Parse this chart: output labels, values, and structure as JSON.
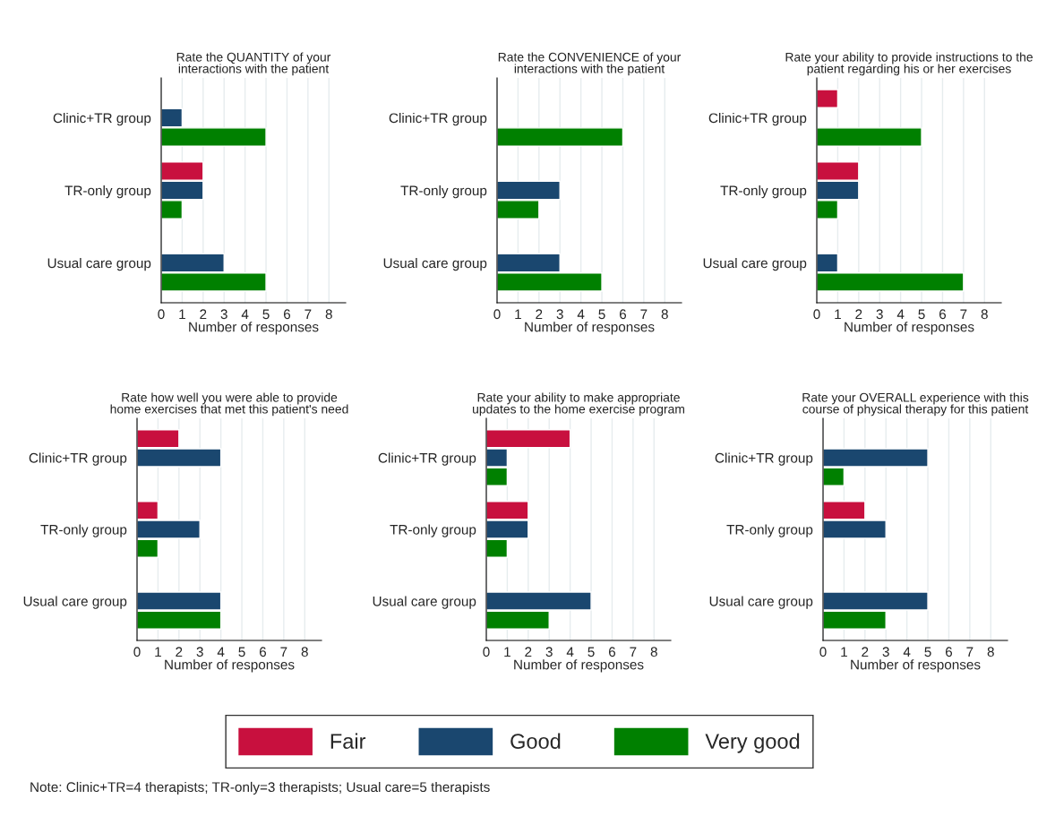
{
  "chart_data": [
    {
      "type": "bar",
      "orientation": "horizontal",
      "title": "Rate the QUANTITY of your\ninteractions with the patient",
      "xlabel": "Number of responses",
      "categories": [
        "Clinic+TR group",
        "TR-only group",
        "Usual care group"
      ],
      "xlim": [
        0,
        8.8
      ],
      "xticks": [
        0,
        1,
        2,
        3,
        4,
        5,
        6,
        7,
        8
      ],
      "grid": "x",
      "legend": "bottom",
      "annotations": [
        "Note: Clinic+TR=4 therapists; TR-only=3 therapists; Usual care=5 therapists"
      ],
      "series": [
        {
          "name": "Fair",
          "color": "#c8103e",
          "values": [
            0,
            2,
            0
          ]
        },
        {
          "name": "Good",
          "color": "#1a476f",
          "values": [
            1,
            2,
            3
          ]
        },
        {
          "name": "Very good",
          "color": "#008000",
          "values": [
            5,
            1,
            5
          ]
        }
      ]
    },
    {
      "type": "bar",
      "orientation": "horizontal",
      "title": "Rate the CONVENIENCE of your\ninteractions with the patient",
      "xlabel": "Number of responses",
      "categories": [
        "Clinic+TR group",
        "TR-only group",
        "Usual care group"
      ],
      "xlim": [
        0,
        8.8
      ],
      "xticks": [
        0,
        1,
        2,
        3,
        4,
        5,
        6,
        7,
        8
      ],
      "grid": "x",
      "series": [
        {
          "values": [
            0,
            0,
            0
          ]
        },
        {
          "color": "#1a476f",
          "values": [
            0,
            3,
            3
          ]
        },
        {
          "color": "#008000",
          "values": [
            6,
            2,
            5
          ]
        }
      ]
    },
    {
      "type": "bar",
      "orientation": "horizontal",
      "title": "Rate your ability to provide instructions to the\npatient regarding his or her exercises",
      "xlabel": "Number of responses",
      "categories": [
        "Clinic+TR group",
        "TR-only group",
        "Usual care group"
      ],
      "xlim": [
        0,
        8.8
      ],
      "xticks": [
        0,
        1,
        2,
        3,
        4,
        5,
        6,
        7,
        8
      ],
      "grid": "x",
      "series": [
        {
          "color": "#c8103e",
          "values": [
            1,
            2,
            0
          ]
        },
        {
          "color": "#1a476f",
          "values": [
            0,
            2,
            1
          ]
        },
        {
          "color": "#008000",
          "values": [
            5,
            1,
            7
          ]
        }
      ]
    },
    {
      "type": "bar",
      "orientation": "horizontal",
      "title": "Rate how well you were able to provide\nhome exercises that met this patient's need",
      "xlabel": "Number of responses",
      "categories": [
        "Clinic+TR group",
        "TR-only group",
        "Usual care group"
      ],
      "xlim": [
        0,
        8.8
      ],
      "xticks": [
        0,
        1,
        2,
        3,
        4,
        5,
        6,
        7,
        8
      ],
      "grid": "x",
      "series": [
        {
          "color": "#c8103e",
          "values": [
            2,
            1,
            0
          ]
        },
        {
          "color": "#1a476f",
          "values": [
            4,
            3,
            4
          ]
        },
        {
          "color": "#008000",
          "values": [
            0,
            1,
            4
          ]
        }
      ]
    },
    {
      "type": "bar",
      "orientation": "horizontal",
      "title": "Rate your ability to make appropriate\nupdates to the home exercise program",
      "xlabel": "Number of responses",
      "categories": [
        "Clinic+TR group",
        "TR-only group",
        "Usual care group"
      ],
      "xlim": [
        0,
        8.8
      ],
      "xticks": [
        0,
        1,
        2,
        3,
        4,
        5,
        6,
        7,
        8
      ],
      "grid": "x",
      "series": [
        {
          "color": "#c8103e",
          "values": [
            4,
            2,
            0
          ]
        },
        {
          "color": "#1a476f",
          "values": [
            1,
            2,
            5
          ]
        },
        {
          "color": "#008000",
          "values": [
            1,
            1,
            3
          ]
        }
      ]
    },
    {
      "type": "bar",
      "orientation": "horizontal",
      "title": "Rate your OVERALL experience with this\ncourse of physical therapy for this patient",
      "xlabel": "Number of responses",
      "categories": [
        "Clinic+TR group",
        "TR-only group",
        "Usual care group"
      ],
      "xlim": [
        0,
        8.8
      ],
      "xticks": [
        0,
        1,
        2,
        3,
        4,
        5,
        6,
        7,
        8
      ],
      "grid": "x",
      "series": [
        {
          "color": "#c8103e",
          "values": [
            0,
            2,
            0
          ]
        },
        {
          "color": "#1a476f",
          "values": [
            5,
            3,
            5
          ]
        },
        {
          "color": "#008000",
          "values": [
            1,
            0,
            3
          ]
        }
      ]
    }
  ]
}
